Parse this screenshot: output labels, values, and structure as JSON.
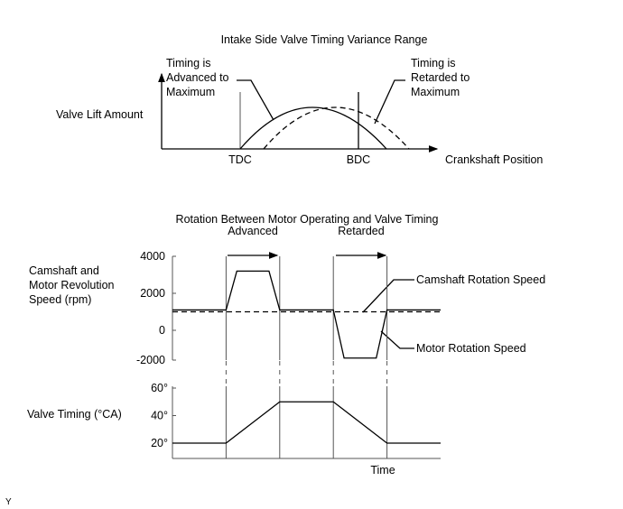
{
  "top": {
    "title": "Intake Side Valve Timing Variance Range",
    "y_label": "Valve Lift Amount",
    "x_label": "Crankshaft Position",
    "tdc": "TDC",
    "bdc": "BDC",
    "advanced_label": [
      "Timing is",
      "Advanced to",
      "Maximum"
    ],
    "retarded_label": [
      "Timing is",
      "Retarded to",
      "Maximum"
    ]
  },
  "bottom": {
    "title": "Rotation Between Motor Operating and Valve Timing",
    "advanced": "Advanced",
    "retarded": "Retarded",
    "speed_label": [
      "Camshaft and",
      "Motor Revolution",
      "Speed (rpm)"
    ],
    "timing_label": "Valve Timing (°CA)",
    "time_label": "Time",
    "camshaft_legend": "Camshaft Rotation Speed",
    "motor_legend": "Motor Rotation Speed"
  },
  "corner_mark": "Y",
  "chart_data": [
    {
      "type": "line",
      "title": "Camshaft and Motor Revolution Speed (rpm)",
      "ylim": [
        -2000,
        4000
      ],
      "yticks": [
        "4000",
        "2000",
        "0",
        "-2000"
      ],
      "ytick_values": [
        4000,
        2000,
        0,
        -2000
      ],
      "series": [
        {
          "name": "Motor Rotation Speed",
          "x": [
            0,
            2,
            2.4,
            3.6,
            4,
            6,
            6.4,
            7.6,
            8,
            10
          ],
          "y": [
            1100,
            1100,
            3200,
            3200,
            1100,
            1100,
            -1500,
            -1500,
            1100,
            1100
          ]
        },
        {
          "name": "Camshaft Rotation Speed",
          "x": [
            0,
            10
          ],
          "y": [
            1000,
            1000
          ]
        }
      ]
    },
    {
      "type": "line",
      "title": "Valve Timing (°CA)",
      "ylim": [
        10,
        60
      ],
      "yticks": [
        "60°",
        "40°",
        "20°"
      ],
      "ytick_values": [
        60,
        40,
        20
      ],
      "xlabel": "Time",
      "series": [
        {
          "name": "Valve Timing",
          "x": [
            0,
            2,
            4,
            6,
            8,
            10
          ],
          "y": [
            20,
            20,
            50,
            50,
            20,
            20
          ]
        }
      ]
    }
  ],
  "phase_markers": [
    2,
    4,
    6,
    8
  ]
}
